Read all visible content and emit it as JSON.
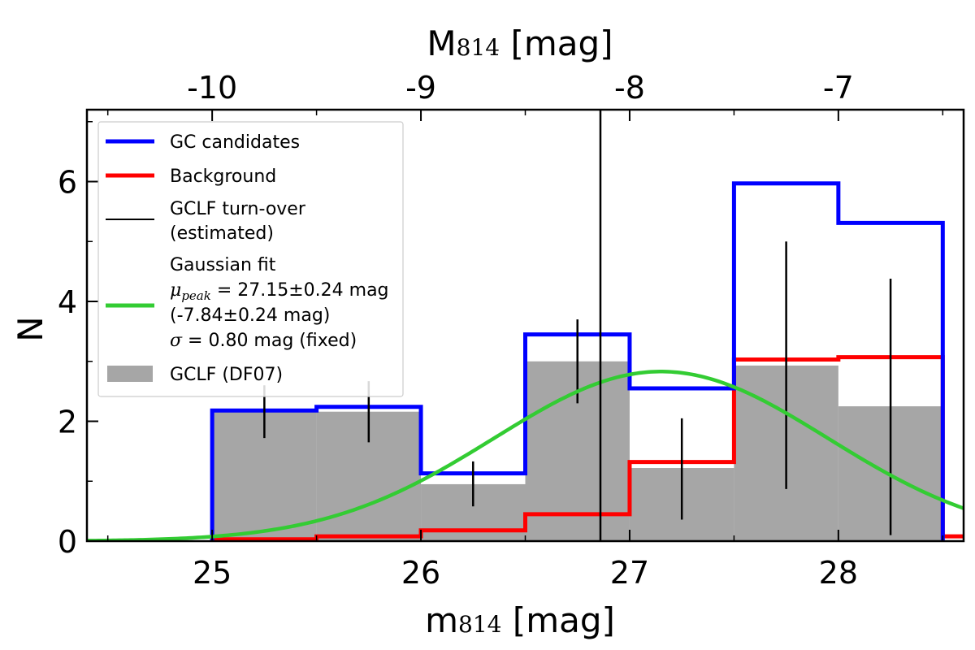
{
  "chart_data": {
    "type": "histogram",
    "xlabel_main": "m",
    "xlabel_sub": "814",
    "xlabel_unit": " [mag]",
    "x2label_main": "M",
    "x2label_sub": "814",
    "x2label_unit": " [mag]",
    "ylabel": "N",
    "xlim": [
      24.4,
      28.6
    ],
    "ylim": [
      0,
      7.2
    ],
    "x_ticks": [
      {
        "value": 25,
        "label": "25"
      },
      {
        "value": 26,
        "label": "26"
      },
      {
        "value": 27,
        "label": "27"
      },
      {
        "value": 28,
        "label": "28"
      }
    ],
    "y_ticks": [
      {
        "value": 0,
        "label": "0"
      },
      {
        "value": 2,
        "label": "2"
      },
      {
        "value": 4,
        "label": "4"
      },
      {
        "value": 6,
        "label": "6"
      }
    ],
    "top_ticks": [
      {
        "value": -10,
        "label": "-10"
      },
      {
        "value": -9,
        "label": "-9"
      },
      {
        "value": -8,
        "label": "-8"
      },
      {
        "value": -7,
        "label": "-7"
      }
    ],
    "distance_modulus": 35.0,
    "bin_edges": [
      25.0,
      25.5,
      26.0,
      26.5,
      27.0,
      27.5,
      28.0,
      28.5
    ],
    "series": {
      "gc_candidates": {
        "name": "GC candidates",
        "color": "#0000ff",
        "values": [
          2.18,
          2.24,
          1.13,
          3.45,
          2.55,
          5.97,
          5.31
        ]
      },
      "background": {
        "name": "Background",
        "color": "#ff0000",
        "values": [
          0.03,
          0.08,
          0.18,
          0.45,
          1.32,
          3.03,
          3.07
        ]
      },
      "gclf": {
        "name": "GCLF (DF07)",
        "color": "#a6a6a6",
        "values": [
          2.15,
          2.16,
          0.95,
          3.0,
          1.22,
          2.93,
          2.25
        ]
      }
    },
    "error_bars": [
      {
        "x": 25.25,
        "low": 1.72,
        "high": 2.6
      },
      {
        "x": 25.75,
        "low": 1.65,
        "high": 2.67
      },
      {
        "x": 26.25,
        "low": 0.58,
        "high": 1.33
      },
      {
        "x": 26.75,
        "low": 2.3,
        "high": 3.7
      },
      {
        "x": 27.25,
        "low": 0.36,
        "high": 2.05
      },
      {
        "x": 27.75,
        "low": 0.87,
        "high": 5.0
      },
      {
        "x": 28.25,
        "low": 0.1,
        "high": 4.38
      }
    ],
    "turnover": {
      "x": 26.86,
      "color": "#000000",
      "label_line1": "GCLF turn-over",
      "label_line2": "(estimated)"
    },
    "gaussian_fit": {
      "color": "#33cc33",
      "mu": 27.15,
      "sigma": 0.8,
      "amplitude": 2.83,
      "label_line1": "Gaussian fit",
      "label_line2_sym": "μ",
      "label_line2_sub": "peak",
      "label_line2_rest": " = 27.15±0.24 mag",
      "label_line3": "(-7.84±0.24 mag)",
      "label_line4_sym": "σ",
      "label_line4_rest": " = 0.80 mag (fixed)"
    }
  }
}
